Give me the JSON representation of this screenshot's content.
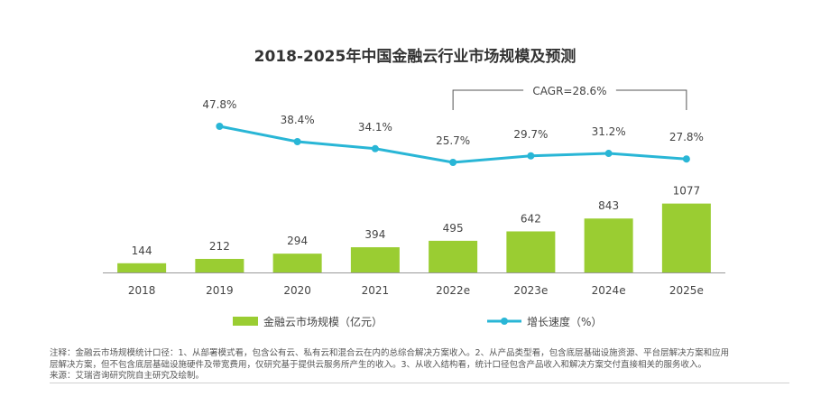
{
  "chart_data": {
    "type": "bar+line",
    "title": "2018-2025年中国金融云行业市场规模及预测",
    "categories": [
      "2018",
      "2019",
      "2020",
      "2021",
      "2022e",
      "2023e",
      "2024e",
      "2025e"
    ],
    "series": [
      {
        "name": "金融云市场规模（亿元）",
        "type": "bar",
        "values": [
          144,
          212,
          294,
          394,
          495,
          642,
          843,
          1077
        ],
        "color": "#9ACD32"
      },
      {
        "name": "增长速度（%）",
        "type": "line",
        "values": [
          null,
          47.8,
          38.4,
          34.1,
          25.7,
          29.7,
          31.2,
          27.8
        ],
        "labels": [
          "",
          "47.8%",
          "38.4%",
          "34.1%",
          "25.7%",
          "29.7%",
          "31.2%",
          "27.8%"
        ],
        "color": "#29B6D6"
      }
    ],
    "bar_ylim": [
      0,
      1100
    ],
    "line_ylim": [
      0,
      100
    ],
    "annotation": "CAGR=28.6%",
    "legend": "bottom"
  },
  "notes": [
    "注释：金融云市场规模统计口径：1、从部署模式看，包含公有云、私有云和混合云在内的总综合解决方案收入。2、从产品类型看，包含底层基础设施资源、平台层解决方案和应用",
    "层解决方案，但不包含底层基础设施硬件及带宽费用，仅研究基于提供云服务所产生的收入。3、从收入结构看，统计口径包含产品收入和解决方案交付直接相关的服务收入。",
    "来源：艾瑞咨询研究院自主研究及绘制。"
  ],
  "colors": {
    "bar": "#9ACD32",
    "line": "#29B6D6",
    "axis": "#999999"
  }
}
